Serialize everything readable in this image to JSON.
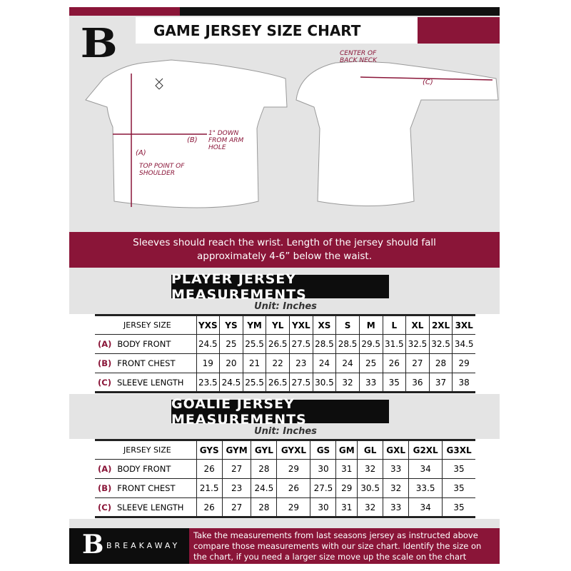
{
  "header": {
    "title": "GAME JERSEY SIZE CHART",
    "logo": "B"
  },
  "diagram": {
    "center_back_neck": "CENTER OF BACK NECK",
    "label_a": "(A)",
    "top_point": "TOP POINT OF SHOULDER",
    "label_b": "(B)",
    "arm_hole": "1\" DOWN FROM ARM HOLE",
    "label_c": "(C)"
  },
  "note": "Sleeves should reach the wrist. Length of the jersey should fall approximately 4-6” below the waist.",
  "player": {
    "heading": "PLAYER JERSEY MEASUREMENTS",
    "unit": "Unit: Inches",
    "sizes": [
      "YXS",
      "YS",
      "YM",
      "YL",
      "YXL",
      "XS",
      "S",
      "M",
      "L",
      "XL",
      "2XL",
      "3XL"
    ],
    "rows": [
      {
        "key": "(A)",
        "label": "BODY FRONT",
        "values": [
          "24.5",
          "25",
          "25.5",
          "26.5",
          "27.5",
          "28.5",
          "28.5",
          "29.5",
          "31.5",
          "32.5",
          "32.5",
          "34.5"
        ]
      },
      {
        "key": "(B)",
        "label": "FRONT CHEST",
        "values": [
          "19",
          "20",
          "21",
          "22",
          "23",
          "24",
          "24",
          "25",
          "26",
          "27",
          "28",
          "29"
        ]
      },
      {
        "key": "(C)",
        "label": "SLEEVE LENGTH",
        "values": [
          "23.5",
          "24.5",
          "25.5",
          "26.5",
          "27.5",
          "30.5",
          "32",
          "33",
          "35",
          "36",
          "37",
          "38"
        ]
      }
    ]
  },
  "goalie": {
    "heading": "GOALIE JERSEY MEASUREMENTS",
    "unit": "Unit: Inches",
    "sizes": [
      "GYS",
      "GYM",
      "GYL",
      "GYXL",
      "GS",
      "GM",
      "GL",
      "GXL",
      "G2XL",
      "G3XL"
    ],
    "rows": [
      {
        "key": "(A)",
        "label": "BODY FRONT",
        "values": [
          "26",
          "27",
          "28",
          "29",
          "30",
          "31",
          "32",
          "33",
          "34",
          "35"
        ]
      },
      {
        "key": "(B)",
        "label": "FRONT CHEST",
        "values": [
          "21.5",
          "23",
          "24.5",
          "26",
          "27.5",
          "29",
          "30.5",
          "32",
          "33.5",
          "35"
        ]
      },
      {
        "key": "(C)",
        "label": "SLEEVE LENGTH",
        "values": [
          "26",
          "27",
          "28",
          "29",
          "30",
          "31",
          "32",
          "33",
          "34",
          "35"
        ]
      }
    ]
  },
  "size_col_header": "JERSEY SIZE",
  "footer": {
    "brand": "BREAKAWAY",
    "logo": "B",
    "text": "Take the measurements from last seasons jersey as instructed above compare those measurements  with our size chart. Identify the size on the chart, if you need a larger size move up the scale on the chart"
  },
  "colors": {
    "accent": "#8a1538",
    "dark": "#0d0d0d"
  }
}
